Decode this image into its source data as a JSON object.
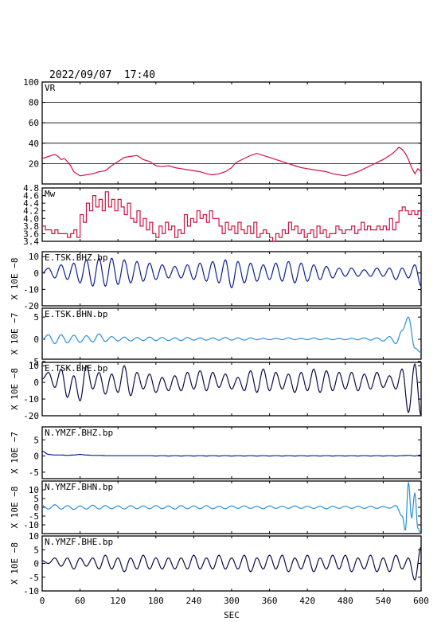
{
  "header": {
    "datetime": "2022/09/07  17:40"
  },
  "colors": {
    "axis": "#000000",
    "red": "#d11341",
    "darkblue": "#0c1f96",
    "lightblue": "#2a8fd6",
    "navy": "#0a0a4a"
  },
  "chart_data": [
    {
      "type": "line",
      "label": "VR",
      "ylabel": "",
      "ylim": [
        0,
        100
      ],
      "yticks": [
        20,
        40,
        60,
        80,
        100
      ],
      "grid": [
        20,
        40,
        60,
        80
      ],
      "color": "red",
      "x": [
        0,
        10,
        20,
        25,
        30,
        35,
        40,
        45,
        50,
        55,
        60,
        70,
        80,
        90,
        100,
        110,
        120,
        125,
        130,
        140,
        150,
        155,
        160,
        170,
        180,
        190,
        200,
        210,
        220,
        230,
        240,
        250,
        260,
        270,
        280,
        290,
        300,
        305,
        310,
        320,
        330,
        340,
        350,
        360,
        370,
        380,
        390,
        400,
        410,
        420,
        430,
        440,
        450,
        460,
        470,
        480,
        490,
        500,
        510,
        520,
        530,
        540,
        545,
        550,
        555,
        560,
        565,
        570,
        575,
        580,
        585,
        590,
        595,
        600
      ],
      "y": [
        25,
        27,
        29,
        27,
        24,
        25,
        22,
        18,
        12,
        10,
        8,
        9,
        10,
        12,
        13,
        18,
        22,
        24,
        26,
        27,
        28,
        26,
        24,
        22,
        18,
        17,
        18,
        16,
        15,
        14,
        13,
        12,
        10,
        9,
        10,
        12,
        16,
        20,
        22,
        25,
        28,
        30,
        28,
        26,
        24,
        22,
        20,
        18,
        16,
        15,
        14,
        13,
        12,
        10,
        9,
        8,
        10,
        12,
        15,
        18,
        21,
        24,
        26,
        28,
        30,
        33,
        36,
        34,
        30,
        24,
        16,
        10,
        15,
        12
      ]
    },
    {
      "type": "line",
      "label": "Mw",
      "ylabel": "",
      "ylim": [
        3.4,
        4.8
      ],
      "yticks": [
        3.4,
        3.6,
        3.8,
        4.0,
        4.2,
        4.4,
        4.6,
        4.8
      ],
      "color": "red",
      "x": [
        0,
        5,
        10,
        15,
        20,
        25,
        30,
        35,
        40,
        45,
        50,
        55,
        60,
        65,
        70,
        75,
        80,
        85,
        90,
        95,
        100,
        105,
        110,
        115,
        120,
        125,
        130,
        135,
        140,
        145,
        150,
        155,
        160,
        165,
        170,
        175,
        180,
        185,
        190,
        195,
        200,
        205,
        210,
        215,
        220,
        225,
        230,
        235,
        240,
        245,
        250,
        255,
        260,
        265,
        270,
        275,
        280,
        285,
        290,
        295,
        300,
        305,
        310,
        315,
        320,
        325,
        330,
        335,
        340,
        345,
        350,
        355,
        360,
        365,
        370,
        375,
        380,
        385,
        390,
        395,
        400,
        405,
        410,
        415,
        420,
        425,
        430,
        435,
        440,
        445,
        450,
        455,
        460,
        465,
        470,
        475,
        480,
        485,
        490,
        495,
        500,
        505,
        510,
        515,
        520,
        525,
        530,
        535,
        540,
        545,
        550,
        555,
        560,
        565,
        570,
        575,
        580,
        585,
        590,
        595,
        600
      ],
      "y": [
        3.8,
        3.7,
        3.7,
        3.6,
        3.7,
        3.6,
        3.6,
        3.6,
        3.5,
        3.6,
        3.7,
        3.5,
        4.1,
        3.9,
        4.4,
        4.2,
        4.6,
        4.3,
        4.5,
        4.2,
        4.7,
        4.3,
        4.5,
        4.2,
        4.5,
        4.3,
        4.1,
        4.4,
        4.0,
        3.9,
        4.2,
        3.8,
        4.0,
        3.7,
        3.9,
        3.6,
        3.5,
        3.8,
        3.6,
        3.9,
        3.7,
        3.8,
        3.5,
        3.7,
        3.6,
        4.1,
        3.8,
        4.0,
        3.9,
        4.2,
        4.0,
        4.1,
        3.9,
        4.2,
        4.0,
        4.0,
        3.8,
        3.6,
        3.9,
        3.7,
        3.8,
        3.6,
        3.9,
        3.7,
        3.6,
        3.8,
        3.6,
        3.9,
        3.5,
        3.6,
        3.7,
        3.6,
        3.5,
        3.4,
        3.6,
        3.5,
        3.7,
        3.6,
        3.9,
        3.7,
        3.8,
        3.6,
        3.7,
        3.5,
        3.6,
        3.7,
        3.5,
        3.8,
        3.6,
        3.7,
        3.5,
        3.6,
        3.6,
        3.8,
        3.7,
        3.6,
        3.7,
        3.7,
        3.8,
        3.6,
        3.7,
        3.9,
        3.7,
        3.8,
        3.7,
        3.7,
        3.8,
        3.7,
        3.8,
        3.7,
        4.0,
        3.7,
        3.9,
        4.2,
        4.3,
        4.2,
        4.1,
        4.2,
        4.1,
        4.2,
        4.2
      ]
    },
    {
      "type": "waveform",
      "label": "E.TSK.BHZ.bp",
      "ylabel": "X 10E −8",
      "ylim": [
        -20,
        13
      ],
      "yticks": [
        -20,
        -10,
        0,
        10
      ],
      "color": "darkblue",
      "x": [
        0,
        10,
        20,
        30,
        40,
        50,
        60,
        70,
        80,
        90,
        100,
        110,
        120,
        130,
        140,
        150,
        160,
        170,
        180,
        190,
        200,
        210,
        220,
        230,
        240,
        250,
        260,
        270,
        280,
        290,
        300,
        310,
        320,
        330,
        340,
        350,
        360,
        370,
        380,
        390,
        400,
        410,
        420,
        430,
        440,
        450,
        460,
        470,
        480,
        490,
        500,
        510,
        520,
        530,
        540,
        550,
        560,
        570,
        580,
        590,
        600
      ],
      "y": [
        0,
        3,
        -3,
        5,
        -4,
        6,
        -6,
        8,
        -8,
        9,
        -8,
        9,
        -7,
        8,
        -6,
        7,
        -5,
        6,
        -4,
        5,
        -3,
        4,
        -3,
        5,
        -4,
        6,
        -5,
        7,
        -6,
        8,
        -9,
        7,
        -6,
        6,
        -5,
        5,
        -4,
        6,
        -5,
        7,
        -6,
        6,
        -5,
        5,
        -4,
        4,
        -3,
        3,
        -2,
        3,
        -2,
        2,
        -2,
        3,
        -2,
        3,
        -4,
        3,
        -3,
        5,
        -8
      ]
    },
    {
      "type": "waveform",
      "label": "E.TSK.BHN.bp",
      "ylabel": "X 10E −7",
      "ylim": [
        -4.5,
        7
      ],
      "yticks": [
        -5,
        0,
        5
      ],
      "color": "lightblue",
      "x": [
        0,
        10,
        20,
        30,
        40,
        50,
        60,
        70,
        80,
        90,
        100,
        110,
        120,
        130,
        140,
        150,
        160,
        170,
        180,
        190,
        200,
        210,
        220,
        230,
        240,
        250,
        260,
        270,
        280,
        290,
        300,
        310,
        320,
        330,
        340,
        350,
        360,
        370,
        380,
        390,
        400,
        410,
        420,
        430,
        440,
        450,
        460,
        470,
        480,
        490,
        500,
        510,
        520,
        530,
        540,
        550,
        560,
        570,
        580,
        590,
        600
      ],
      "y": [
        0,
        1,
        -1,
        1,
        -0.8,
        0.9,
        -0.7,
        0.8,
        -0.6,
        1.2,
        -0.5,
        0.6,
        -0.4,
        0.5,
        -0.4,
        0.4,
        -0.3,
        0.5,
        -0.3,
        0.4,
        -0.3,
        0.3,
        -0.3,
        0.4,
        -0.2,
        0.3,
        -0.2,
        0.3,
        -0.2,
        0.4,
        -0.2,
        0.3,
        -0.2,
        0.3,
        -0.1,
        0.2,
        -0.1,
        0.2,
        -0.1,
        0.3,
        -0.1,
        0.2,
        -0.1,
        0.3,
        -0.1,
        0.2,
        -0.1,
        0.2,
        -0.1,
        0.2,
        -0.1,
        0.3,
        -0.2,
        0.3,
        -0.4,
        0.6,
        -1,
        2,
        5,
        -2,
        -3
      ]
    },
    {
      "type": "waveform",
      "label": "E.TSK.BHE.bp",
      "ylabel": "X 10E −8",
      "ylim": [
        -20,
        12
      ],
      "yticks": [
        -20,
        -10,
        0,
        10
      ],
      "color": "navy",
      "x": [
        0,
        10,
        20,
        30,
        40,
        50,
        60,
        70,
        80,
        90,
        100,
        110,
        120,
        130,
        140,
        150,
        160,
        170,
        180,
        190,
        200,
        210,
        220,
        230,
        240,
        250,
        260,
        270,
        280,
        290,
        300,
        310,
        320,
        330,
        340,
        350,
        360,
        370,
        380,
        390,
        400,
        410,
        420,
        430,
        440,
        450,
        460,
        470,
        480,
        490,
        500,
        510,
        520,
        530,
        540,
        550,
        560,
        570,
        580,
        590,
        600
      ],
      "y": [
        2,
        6,
        -3,
        8,
        -9,
        4,
        -11,
        10,
        -4,
        6,
        -7,
        5,
        -6,
        10,
        -8,
        6,
        -4,
        5,
        -6,
        3,
        -5,
        4,
        -5,
        6,
        -4,
        7,
        -5,
        6,
        -3,
        5,
        -4,
        3,
        -5,
        7,
        -6,
        8,
        -5,
        6,
        -4,
        5,
        -6,
        6,
        -5,
        8,
        -6,
        7,
        -5,
        6,
        -4,
        6,
        -5,
        5,
        -4,
        6,
        -3,
        4,
        -4,
        8,
        -18,
        11,
        -20
      ]
    },
    {
      "type": "waveform",
      "label": "N.YMZF.BHZ.bp",
      "ylabel": "X 10E −7",
      "ylim": [
        -7,
        9
      ],
      "yticks": [
        -5,
        0,
        5
      ],
      "color": "darkblue",
      "x": [
        0,
        10,
        20,
        30,
        40,
        50,
        60,
        70,
        80,
        90,
        100,
        110,
        120,
        130,
        140,
        150,
        160,
        170,
        180,
        190,
        200,
        210,
        220,
        230,
        240,
        250,
        260,
        270,
        280,
        290,
        300,
        310,
        320,
        330,
        340,
        350,
        360,
        370,
        380,
        390,
        400,
        410,
        420,
        430,
        440,
        450,
        460,
        470,
        480,
        490,
        500,
        510,
        520,
        530,
        540,
        550,
        560,
        570,
        580,
        590,
        600
      ],
      "y": [
        1.5,
        0.5,
        0.3,
        0.3,
        0.2,
        0.3,
        0.5,
        0.3,
        0.2,
        0.2,
        0.1,
        0.1,
        0.1,
        0.1,
        0.1,
        0.1,
        0.1,
        0.1,
        0.0,
        0.1,
        0.0,
        0.1,
        0.0,
        0.1,
        0.0,
        0.1,
        0.0,
        0.1,
        0.0,
        0.1,
        0.0,
        0.1,
        0.0,
        0.1,
        0.0,
        0.1,
        0.0,
        0.1,
        0.0,
        0.1,
        0.0,
        0.1,
        0.0,
        0.1,
        0.0,
        0.1,
        0.0,
        0.1,
        0.0,
        0.1,
        0.0,
        0.1,
        0.0,
        0.1,
        0.0,
        0.1,
        0.0,
        0.1,
        0.2,
        0.0,
        0.3
      ]
    },
    {
      "type": "waveform",
      "label": "N.YMZF.BHN.bp",
      "ylabel": "X 10E −8",
      "ylim": [
        -15,
        15
      ],
      "yticks": [
        -10,
        -5,
        0,
        5,
        10
      ],
      "color": "lightblue",
      "x": [
        0,
        10,
        20,
        30,
        40,
        50,
        60,
        70,
        80,
        90,
        100,
        110,
        120,
        130,
        140,
        150,
        160,
        170,
        180,
        190,
        200,
        210,
        220,
        230,
        240,
        250,
        260,
        270,
        280,
        290,
        300,
        310,
        320,
        330,
        340,
        350,
        360,
        370,
        380,
        390,
        400,
        410,
        420,
        430,
        440,
        450,
        460,
        470,
        480,
        490,
        500,
        510,
        520,
        530,
        540,
        550,
        560,
        570,
        575,
        580,
        585,
        590,
        595,
        600
      ],
      "y": [
        1,
        -1,
        1.5,
        -1,
        1,
        -1.2,
        0.8,
        -1,
        1.2,
        -1,
        1,
        -0.8,
        0.8,
        -1,
        1,
        -0.8,
        0.8,
        -0.8,
        1,
        -0.8,
        0.8,
        -1,
        1,
        -0.8,
        0.8,
        -0.8,
        1,
        -0.8,
        0.6,
        -0.8,
        0.8,
        -0.6,
        0.8,
        -0.6,
        0.6,
        -0.8,
        0.8,
        -0.6,
        0.6,
        -0.6,
        0.8,
        -0.6,
        0.6,
        -0.6,
        0.6,
        -0.8,
        0.6,
        -0.6,
        0.6,
        -0.6,
        0.6,
        -0.6,
        0.6,
        -0.6,
        0.5,
        -0.5,
        1,
        -5,
        -13,
        14,
        -6,
        8,
        -12,
        -15
      ]
    },
    {
      "type": "waveform",
      "label": "N.YMZF.BHE.bp",
      "ylabel": "X 10E −8",
      "ylim": [
        -10,
        10
      ],
      "yticks": [
        -10,
        -5,
        0,
        5,
        10
      ],
      "color": "navy",
      "x": [
        0,
        10,
        20,
        30,
        40,
        50,
        60,
        70,
        80,
        90,
        100,
        110,
        120,
        130,
        140,
        150,
        160,
        170,
        180,
        190,
        200,
        210,
        220,
        230,
        240,
        250,
        260,
        270,
        280,
        290,
        300,
        310,
        320,
        330,
        340,
        350,
        360,
        370,
        380,
        390,
        400,
        410,
        420,
        430,
        440,
        450,
        460,
        470,
        480,
        490,
        500,
        510,
        520,
        530,
        540,
        550,
        560,
        570,
        580,
        590,
        600
      ],
      "y": [
        1,
        0,
        2,
        -1,
        2,
        -2,
        2,
        -1,
        2,
        -2,
        3,
        -2,
        2,
        -3,
        2,
        -2,
        3,
        -2,
        2,
        -2,
        2,
        -2,
        2,
        -2,
        3,
        -2,
        2,
        -2,
        3,
        -2,
        2,
        -2,
        3,
        -3,
        2,
        -2,
        3,
        -2,
        3,
        -3,
        2,
        -2,
        3,
        -3,
        2,
        -2,
        3,
        -2,
        3,
        -3,
        2,
        -2,
        3,
        -3,
        2,
        -3,
        3,
        -2,
        2,
        -6,
        6
      ]
    }
  ],
  "xaxis": {
    "label": "SEC",
    "ticks": [
      0,
      60,
      120,
      180,
      240,
      300,
      360,
      420,
      480,
      540,
      600
    ],
    "lim": [
      0,
      600
    ]
  }
}
